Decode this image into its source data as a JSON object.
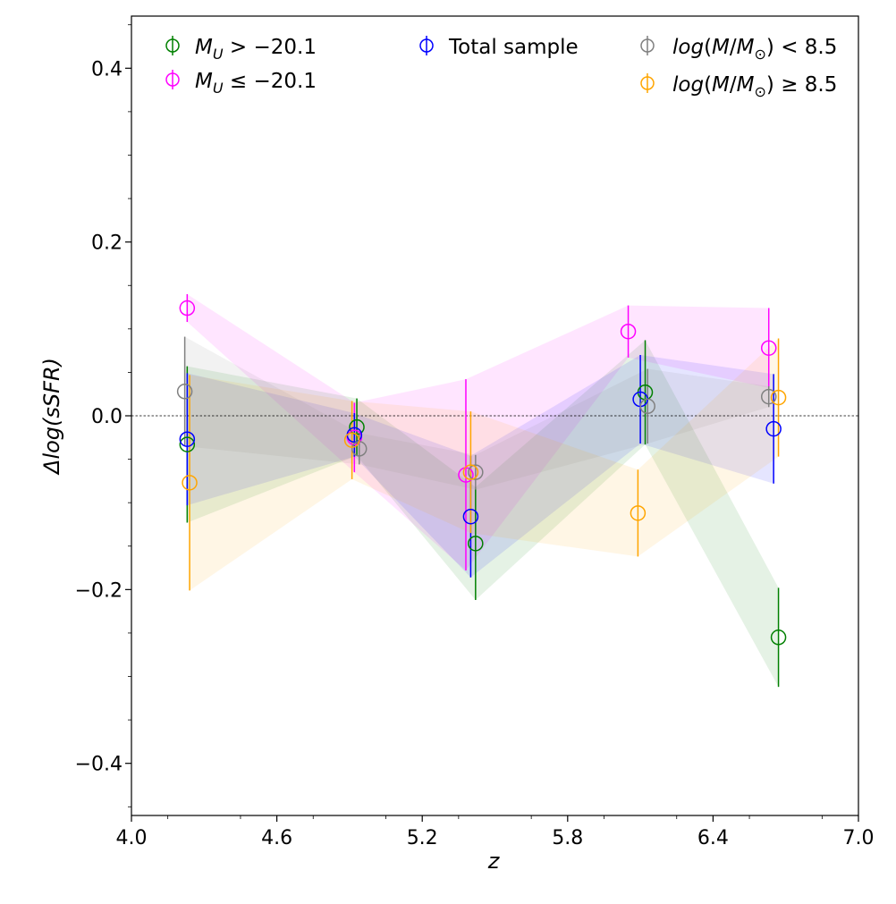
{
  "chart_data": {
    "type": "scatter",
    "xlabel": "z",
    "ylabel": "Δlog(sSFR)",
    "xlim": [
      4.0,
      7.0
    ],
    "ylim": [
      -0.46,
      0.46
    ],
    "xticks": [
      4.0,
      4.6,
      5.2,
      5.8,
      6.4,
      7.0
    ],
    "xtick_labels": [
      "4.0",
      "4.6",
      "5.2",
      "5.8",
      "6.4",
      "7.0"
    ],
    "yticks": [
      -0.4,
      -0.2,
      0.0,
      0.2,
      0.4
    ],
    "ytick_labels": [
      "−0.4",
      "−0.2",
      "0.0",
      "0.2",
      "0.4"
    ],
    "reference_line_y": 0.0,
    "legend_position": "top",
    "series": [
      {
        "name": "M_U > −20.1",
        "color": "#008000",
        "points": [
          {
            "x": 4.23,
            "y": -0.033,
            "err": 0.09
          },
          {
            "x": 4.93,
            "y": -0.013,
            "err": 0.033
          },
          {
            "x": 5.42,
            "y": -0.147,
            "err": 0.065
          },
          {
            "x": 6.12,
            "y": 0.027,
            "err": 0.06
          },
          {
            "x": 6.67,
            "y": -0.255,
            "err": 0.057
          }
        ]
      },
      {
        "name": "M_U ≤ −20.1",
        "color": "#ff00ff",
        "points": [
          {
            "x": 4.23,
            "y": 0.124,
            "err": 0.016
          },
          {
            "x": 4.92,
            "y": -0.025,
            "err": 0.04
          },
          {
            "x": 5.38,
            "y": -0.068,
            "err": 0.11
          },
          {
            "x": 6.05,
            "y": 0.097,
            "err": 0.03
          },
          {
            "x": 6.63,
            "y": 0.078,
            "err": 0.046
          }
        ]
      },
      {
        "name": "Total sample",
        "color": "#0000ff",
        "points": [
          {
            "x": 4.23,
            "y": -0.027,
            "err": 0.076
          },
          {
            "x": 4.92,
            "y": -0.022,
            "err": 0.025
          },
          {
            "x": 5.4,
            "y": -0.116,
            "err": 0.07
          },
          {
            "x": 6.1,
            "y": 0.019,
            "err": 0.051
          },
          {
            "x": 6.65,
            "y": -0.015,
            "err": 0.063
          }
        ]
      },
      {
        "name": "log(M/M⊙) < 8.5",
        "color": "#808080",
        "points": [
          {
            "x": 4.22,
            "y": 0.028,
            "err": 0.063
          },
          {
            "x": 4.94,
            "y": -0.038,
            "err": 0.018
          },
          {
            "x": 5.42,
            "y": -0.065,
            "err": 0.02
          },
          {
            "x": 6.13,
            "y": 0.011,
            "err": 0.043
          },
          {
            "x": 6.63,
            "y": 0.022,
            "err": 0.012
          }
        ]
      },
      {
        "name": "log(M/M⊙) ≥ 8.5",
        "color": "#ffa500",
        "points": [
          {
            "x": 4.24,
            "y": -0.077,
            "err": 0.124
          },
          {
            "x": 4.91,
            "y": -0.028,
            "err": 0.045
          },
          {
            "x": 5.4,
            "y": -0.065,
            "err": 0.07
          },
          {
            "x": 6.09,
            "y": -0.112,
            "err": 0.05
          },
          {
            "x": 6.67,
            "y": 0.021,
            "err": 0.068
          }
        ]
      }
    ]
  },
  "legend": {
    "mu_gt": {
      "sym": "M",
      "sub": "U",
      "rest": " > −20.1"
    },
    "mu_le": {
      "sym": "M",
      "sub": "U",
      "rest": " ≤ −20.1"
    },
    "total": "Total sample",
    "lowmass": {
      "a": "log",
      "b": "(",
      "c": "M",
      "d": "/",
      "e": "M",
      "f": "⊙",
      "g": ") < 8.5"
    },
    "highmass": {
      "a": "log",
      "b": "(",
      "c": "M",
      "d": "/",
      "e": "M",
      "f": "⊙",
      "g": ") ≥ 8.5"
    }
  }
}
